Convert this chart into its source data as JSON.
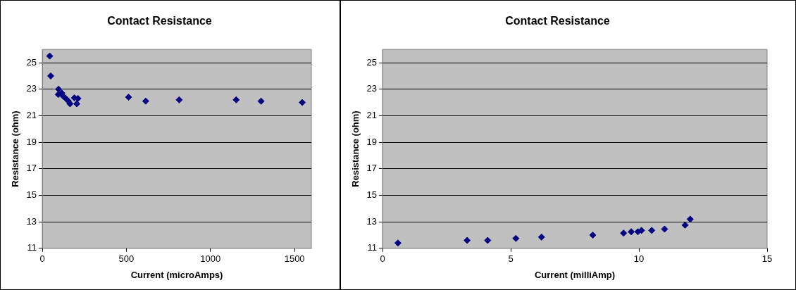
{
  "chart_data": [
    {
      "type": "scatter",
      "title": "Contact Resistance",
      "xlabel": "Current (microAmps)",
      "ylabel": "Resistance (ohm)",
      "marker": "diamond",
      "grid": "y",
      "legend": false,
      "xlim": [
        0,
        1600
      ],
      "xticks": [
        0,
        500,
        1000,
        1500
      ],
      "ylim": [
        11,
        26
      ],
      "yticks": [
        11,
        13,
        15,
        17,
        19,
        21,
        23,
        25
      ],
      "series": [
        {
          "color": "#000080",
          "x": [
            44,
            50,
            97,
            95,
            116,
            126,
            140,
            155,
            165,
            191,
            205,
            212,
            513,
            615,
            814,
            1153,
            1301,
            1546
          ],
          "values": [
            25.5,
            24.0,
            23.0,
            22.6,
            22.7,
            22.45,
            22.3,
            22.1,
            21.9,
            22.35,
            21.9,
            22.3,
            22.4,
            22.1,
            22.2,
            22.2,
            22.1,
            22.0
          ]
        }
      ]
    },
    {
      "type": "scatter",
      "title": "Contact Resistance",
      "xlabel": "Current (milliAmp)",
      "ylabel": "Resistance (ohm)",
      "marker": "diamond",
      "grid": "y",
      "legend": false,
      "xlim": [
        0,
        15
      ],
      "xticks": [
        0,
        5,
        10,
        15
      ],
      "ylim": [
        11,
        26
      ],
      "yticks": [
        11,
        13,
        15,
        17,
        19,
        21,
        23,
        25
      ],
      "series": [
        {
          "color": "#000080",
          "x": [
            0.6,
            3.3,
            4.1,
            5.2,
            6.2,
            8.2,
            9.4,
            9.7,
            9.96,
            10.1,
            10.5,
            11.0,
            11.8,
            12.0
          ],
          "values": [
            11.4,
            11.6,
            11.6,
            11.75,
            11.85,
            12.0,
            12.15,
            12.25,
            12.25,
            12.35,
            12.35,
            12.45,
            12.75,
            13.2
          ]
        }
      ]
    }
  ]
}
